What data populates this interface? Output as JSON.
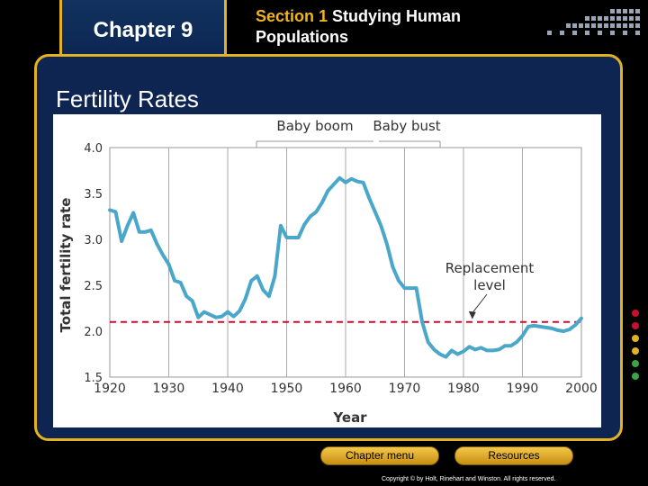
{
  "header": {
    "chapter": "Chapter 9",
    "section_prefix": "Section 1",
    "section_title": " Studying Human Populations"
  },
  "slide": {
    "title": "Fertility Rates"
  },
  "footer": {
    "chapter_menu": "Chapter menu",
    "resources": "Resources",
    "copyright": "Copyright © by Holt, Rinehart and Winston. All rights reserved."
  },
  "colors": {
    "accent": "#e2b223",
    "panel": "#0e2552",
    "line": "#4aa7c9",
    "replacement": "#c8102e"
  },
  "chart_data": {
    "type": "line",
    "xlabel": "Year",
    "ylabel": "Total fertility rate",
    "xlim": [
      1920,
      2000
    ],
    "ylim": [
      1.5,
      4.0
    ],
    "x_ticks": [
      1920,
      1930,
      1940,
      1950,
      1960,
      1970,
      1980,
      1990,
      2000
    ],
    "y_ticks": [
      "1.5",
      "2.0",
      "2.5",
      "3.0",
      "3.5",
      "4.0"
    ],
    "grid": "vertical",
    "top_labels": [
      "Baby boom",
      "Baby bust"
    ],
    "annotation": {
      "text": [
        "Replacement",
        "level"
      ],
      "x": 1981.5,
      "y": 2.12
    },
    "replacement_level": 2.1,
    "series": [
      {
        "x": [
          1920,
          1921,
          1922,
          1923,
          1924,
          1925,
          1926,
          1927,
          1928,
          1929,
          1930,
          1931,
          1932,
          1933,
          1934,
          1935,
          1936,
          1937,
          1938,
          1939,
          1940,
          1941,
          1942,
          1943,
          1944,
          1945,
          1946,
          1947,
          1948,
          1949,
          1950,
          1951,
          1952,
          1953,
          1954,
          1955,
          1956,
          1957,
          1958,
          1959,
          1960,
          1961,
          1962,
          1963,
          1964,
          1965,
          1966,
          1967,
          1968,
          1969,
          1970,
          1971,
          1972,
          1973,
          1974,
          1975,
          1976,
          1977,
          1978,
          1979,
          1980,
          1981,
          1982,
          1983,
          1984,
          1985,
          1986,
          1987,
          1988,
          1989,
          1990,
          1991,
          1992,
          1993,
          1994,
          1995,
          1996,
          1997,
          1998,
          1999,
          2000
        ],
        "values": [
          3.32,
          3.3,
          2.98,
          3.15,
          3.29,
          3.08,
          3.08,
          3.1,
          2.95,
          2.83,
          2.73,
          2.55,
          2.53,
          2.38,
          2.33,
          2.15,
          2.21,
          2.18,
          2.15,
          2.16,
          2.21,
          2.16,
          2.22,
          2.35,
          2.55,
          2.6,
          2.45,
          2.38,
          2.6,
          3.15,
          3.02,
          3.02,
          3.02,
          3.16,
          3.25,
          3.3,
          3.4,
          3.53,
          3.6,
          3.67,
          3.62,
          3.66,
          3.63,
          3.62,
          3.45,
          3.3,
          3.15,
          2.95,
          2.7,
          2.55,
          2.47,
          2.47,
          2.47,
          2.1,
          1.88,
          1.8,
          1.75,
          1.72,
          1.79,
          1.75,
          1.78,
          1.83,
          1.8,
          1.82,
          1.79,
          1.79,
          1.8,
          1.84,
          1.84,
          1.88,
          1.95,
          2.05,
          2.06,
          2.05,
          2.04,
          2.03,
          2.01,
          2.0,
          2.02,
          2.07,
          2.14
        ]
      }
    ]
  }
}
